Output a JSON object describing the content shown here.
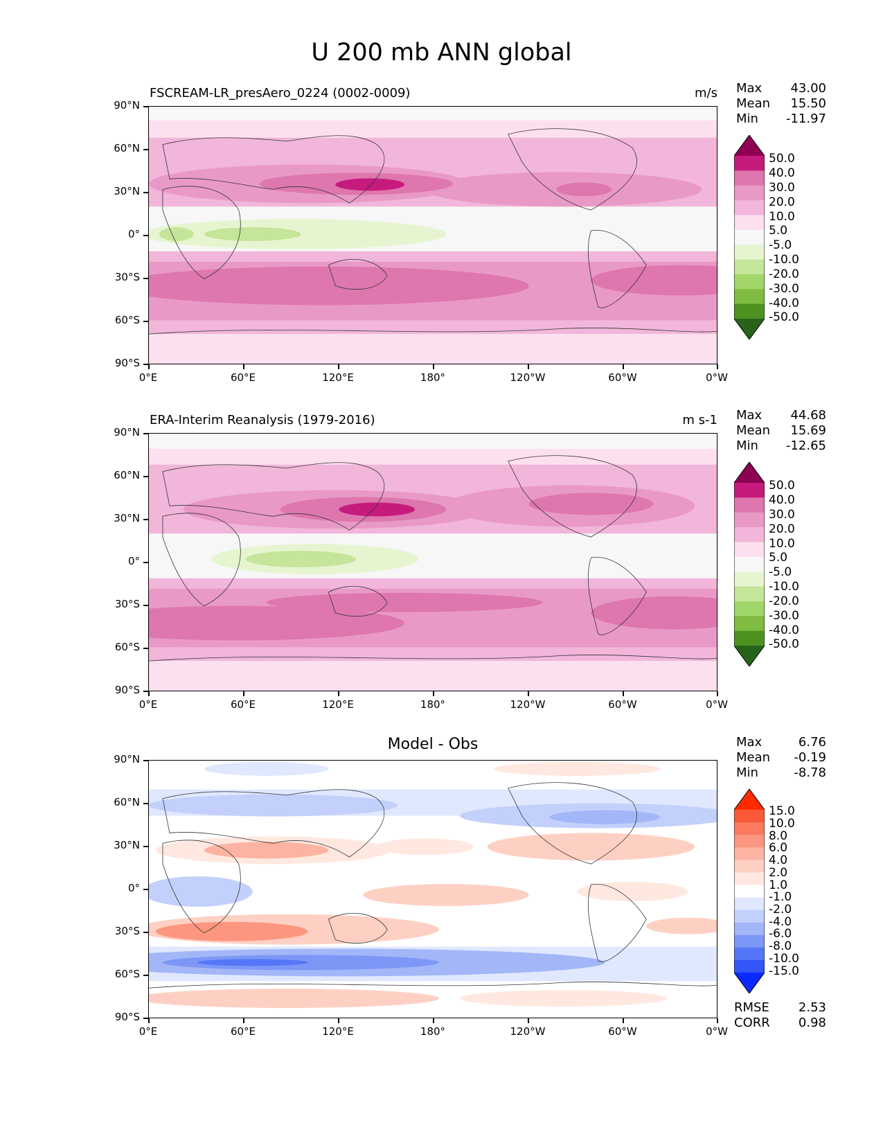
{
  "title": "U 200 mb ANN global",
  "panels": [
    {
      "title_left": "FSCREAM-LR_presAero_0224 (0002-0009)",
      "title_center": "",
      "units": "m/s",
      "stats": [
        [
          "Max",
          "43.00"
        ],
        [
          "Mean",
          "15.50"
        ],
        [
          "Min",
          "-11.97"
        ]
      ],
      "colorbar_labels": [
        "50.0",
        "40.0",
        "30.0",
        "20.0",
        "10.0",
        "5.0",
        "-5.0",
        "-10.0",
        "-20.0",
        "-30.0",
        "-40.0",
        "-50.0"
      ],
      "colorbar_colors": [
        "#8e0152",
        "#c51b7d",
        "#de77ae",
        "#e999c5",
        "#f1b6da",
        "#fde0ef",
        "#f7f7f7",
        "#e6f5d0",
        "#c5e59a",
        "#a1d76a",
        "#7fbc41",
        "#4d9221",
        "#276419"
      ]
    },
    {
      "title_left": "ERA-Interim Reanalysis (1979-2016)",
      "title_center": "",
      "units": "m s-1",
      "stats": [
        [
          "Max",
          "44.68"
        ],
        [
          "Mean",
          "15.69"
        ],
        [
          "Min",
          "-12.65"
        ]
      ],
      "colorbar_labels": [
        "50.0",
        "40.0",
        "30.0",
        "20.0",
        "10.0",
        "5.0",
        "-5.0",
        "-10.0",
        "-20.0",
        "-30.0",
        "-40.0",
        "-50.0"
      ],
      "colorbar_colors": [
        "#8e0152",
        "#c51b7d",
        "#de77ae",
        "#e999c5",
        "#f1b6da",
        "#fde0ef",
        "#f7f7f7",
        "#e6f5d0",
        "#c5e59a",
        "#a1d76a",
        "#7fbc41",
        "#4d9221",
        "#276419"
      ]
    },
    {
      "title_left": "",
      "title_center": "Model - Obs",
      "units": "",
      "stats": [
        [
          "Max",
          "6.76"
        ],
        [
          "Mean",
          "-0.19"
        ],
        [
          "Min",
          "-8.78"
        ]
      ],
      "colorbar_labels": [
        "15.0",
        "10.0",
        "8.0",
        "6.0",
        "4.0",
        "2.0",
        "1.0",
        "-1.0",
        "-2.0",
        "-4.0",
        "-6.0",
        "-8.0",
        "-10.0",
        "-15.0"
      ],
      "colorbar_colors": [
        "#ff2a00",
        "#fa5a3a",
        "#fb7a5e",
        "#fc9680",
        "#fdb3a2",
        "#fed0c4",
        "#ffe8e0",
        "#ffffff",
        "#e0e8ff",
        "#c2d0fb",
        "#a3b6f8",
        "#7c97f6",
        "#5577f7",
        "#3355f8",
        "#0a2aff"
      ],
      "rmse": [
        "RMSE",
        "2.53"
      ],
      "corr": [
        "CORR",
        "0.98"
      ]
    }
  ],
  "axes": {
    "y_labels": [
      "90°N",
      "60°N",
      "30°N",
      "0°",
      "30°S",
      "60°S",
      "90°S"
    ],
    "x_labels": [
      "0°E",
      "60°E",
      "120°E",
      "180°",
      "120°W",
      "60°W",
      "0°W"
    ]
  }
}
